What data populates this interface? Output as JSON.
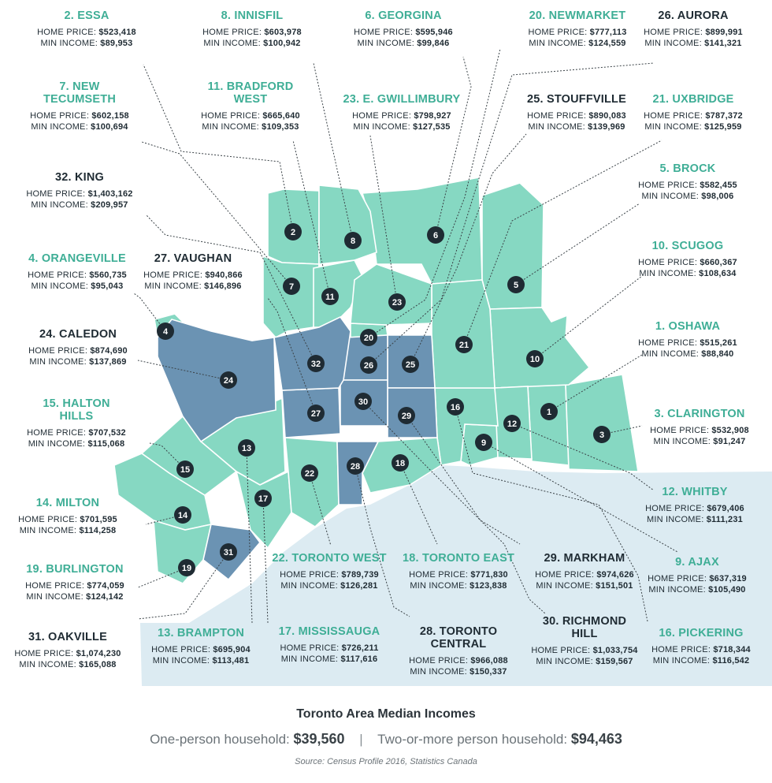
{
  "title": "Toronto Area Median Incomes",
  "summary": {
    "one_person_label": "One-person household:",
    "one_person_value": "$39,560",
    "separator": "|",
    "multi_person_label": "Two-or-more person household:",
    "multi_person_value": "$94,463"
  },
  "source": "Source: Census Profile 2016, Statistics Canada",
  "price_label": "HOME PRICE:",
  "income_label": "MIN INCOME:",
  "colors": {
    "low_region": "#86d8c2",
    "high_region": "#6b93b3",
    "water": "#dcebf2",
    "marker": "#1f2b33",
    "teal_text": "#3fae96",
    "dark_text": "#1f2b33"
  },
  "regions": [
    {
      "num": "1",
      "name": "1. OSHAWA",
      "price": "$515,261",
      "income": "$88,840",
      "tier": "teal"
    },
    {
      "num": "2",
      "name": "2. ESSA",
      "price": "$523,418",
      "income": "$89,953",
      "tier": "teal"
    },
    {
      "num": "3",
      "name": "3. CLARINGTON",
      "price": "$532,908",
      "income": "$91,247",
      "tier": "teal"
    },
    {
      "num": "4",
      "name": "4. ORANGEVILLE",
      "price": "$560,735",
      "income": "$95,043",
      "tier": "teal"
    },
    {
      "num": "5",
      "name": "5. BROCK",
      "price": "$582,455",
      "income": "$98,006",
      "tier": "teal"
    },
    {
      "num": "6",
      "name": "6. GEORGINA",
      "price": "$595,946",
      "income": "$99,846",
      "tier": "teal"
    },
    {
      "num": "7",
      "name": "7. NEW\nTECUMSETH",
      "price": "$602,158",
      "income": "$100,694",
      "tier": "teal"
    },
    {
      "num": "8",
      "name": "8. INNISFIL",
      "price": "$603,978",
      "income": "$100,942",
      "tier": "teal"
    },
    {
      "num": "9",
      "name": "9. AJAX",
      "price": "$637,319",
      "income": "$105,490",
      "tier": "teal"
    },
    {
      "num": "10",
      "name": "10. SCUGOG",
      "price": "$660,367",
      "income": "$108,634",
      "tier": "teal"
    },
    {
      "num": "11",
      "name": "11. BRADFORD\nWEST",
      "price": "$665,640",
      "income": "$109,353",
      "tier": "teal"
    },
    {
      "num": "12",
      "name": "12. WHITBY",
      "price": "$679,406",
      "income": "$111,231",
      "tier": "teal"
    },
    {
      "num": "13",
      "name": "13. BRAMPTON",
      "price": "$695,904",
      "income": "$113,481",
      "tier": "teal"
    },
    {
      "num": "14",
      "name": "14. MILTON",
      "price": "$701,595",
      "income": "$114,258",
      "tier": "teal"
    },
    {
      "num": "15",
      "name": "15. HALTON\nHILLS",
      "price": "$707,532",
      "income": "$115,068",
      "tier": "teal"
    },
    {
      "num": "16",
      "name": "16. PICKERING",
      "price": "$718,344",
      "income": "$116,542",
      "tier": "teal"
    },
    {
      "num": "17",
      "name": "17. MISSISSAUGA",
      "price": "$726,211",
      "income": "$117,616",
      "tier": "teal"
    },
    {
      "num": "18",
      "name": "18. TORONTO EAST",
      "price": "$771,830",
      "income": "$123,838",
      "tier": "teal"
    },
    {
      "num": "19",
      "name": "19. BURLINGTON",
      "price": "$774,059",
      "income": "$124,142",
      "tier": "teal"
    },
    {
      "num": "20",
      "name": "20. NEWMARKET",
      "price": "$777,113",
      "income": "$124,559",
      "tier": "teal"
    },
    {
      "num": "21",
      "name": "21. UXBRIDGE",
      "price": "$787,372",
      "income": "$125,959",
      "tier": "teal"
    },
    {
      "num": "22",
      "name": "22. TORONTO WEST",
      "price": "$789,739",
      "income": "$126,281",
      "tier": "teal"
    },
    {
      "num": "23",
      "name": "23. E. GWILLIMBURY",
      "price": "$798,927",
      "income": "$127,535",
      "tier": "teal"
    },
    {
      "num": "24",
      "name": "24. CALEDON",
      "price": "$874,690",
      "income": "$137,869",
      "tier": "dark"
    },
    {
      "num": "25",
      "name": "25. STOUFFVILLE",
      "price": "$890,083",
      "income": "$139,969",
      "tier": "dark"
    },
    {
      "num": "26",
      "name": "26. AURORA",
      "price": "$899,991",
      "income": "$141,321",
      "tier": "dark"
    },
    {
      "num": "27",
      "name": "27. VAUGHAN",
      "price": "$940,866",
      "income": "$146,896",
      "tier": "dark"
    },
    {
      "num": "28",
      "name": "28. TORONTO CENTRAL",
      "price": "$966,088",
      "income": "$150,337",
      "tier": "dark"
    },
    {
      "num": "29",
      "name": "29. MARKHAM",
      "price": "$974,626",
      "income": "$151,501",
      "tier": "dark"
    },
    {
      "num": "30",
      "name": "30. RICHMOND\nHILL",
      "price": "$1,033,754",
      "income": "$159,567",
      "tier": "dark"
    },
    {
      "num": "31",
      "name": "31. OAKVILLE",
      "price": "$1,074,230",
      "income": "$165,088",
      "tier": "dark"
    },
    {
      "num": "32",
      "name": "32. KING",
      "price": "$1,403,162",
      "income": "$209,957",
      "tier": "dark"
    }
  ]
}
